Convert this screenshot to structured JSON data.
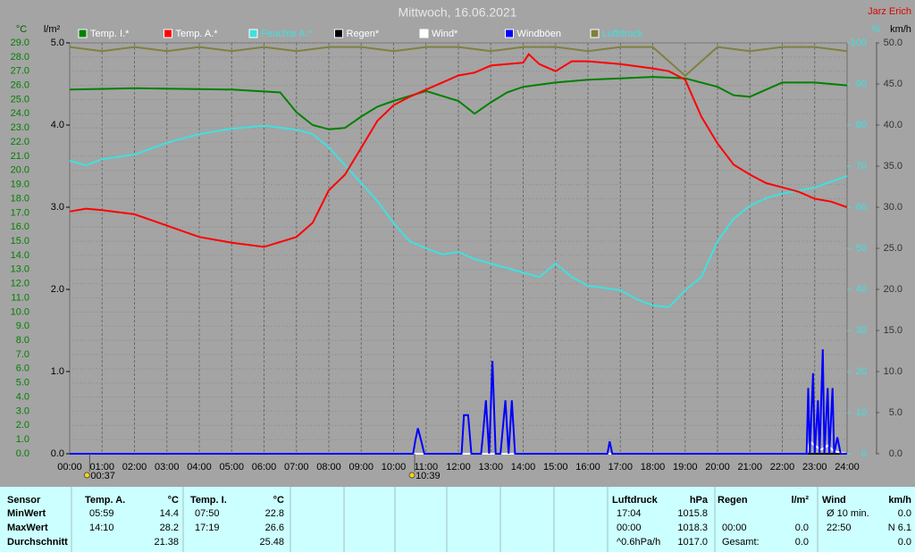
{
  "chart_data": {
    "type": "line",
    "title": "Mittwoch, 16.06.2021",
    "author": "Jarz Erich",
    "units": {
      "y": "°C",
      "y2": "l/m²",
      "y3": "%",
      "y4": "km/h"
    },
    "xlim": [
      0,
      24
    ],
    "xticks": [
      {
        "value": 0,
        "label": "00:00"
      },
      {
        "value": 1,
        "label": "01:00"
      },
      {
        "value": 2,
        "label": "02:00"
      },
      {
        "value": 3,
        "label": "03:00"
      },
      {
        "value": 4,
        "label": "04:00"
      },
      {
        "value": 5,
        "label": "05:00"
      },
      {
        "value": 6,
        "label": "06:00"
      },
      {
        "value": 7,
        "label": "07:00"
      },
      {
        "value": 8,
        "label": "08:00"
      },
      {
        "value": 9,
        "label": "09:00"
      },
      {
        "value": 10,
        "label": "10:00"
      },
      {
        "value": 11,
        "label": "11:00"
      },
      {
        "value": 12,
        "label": "12:00"
      },
      {
        "value": 13,
        "label": "13:00"
      },
      {
        "value": 14,
        "label": "14:00"
      },
      {
        "value": 15,
        "label": "15:00"
      },
      {
        "value": 16,
        "label": "16:00"
      },
      {
        "value": 17,
        "label": "17:00"
      },
      {
        "value": 18,
        "label": "18:00"
      },
      {
        "value": 19,
        "label": "19:00"
      },
      {
        "value": 20,
        "label": "20:00"
      },
      {
        "value": 21,
        "label": "21:00"
      },
      {
        "value": 22,
        "label": "22:00"
      },
      {
        "value": 23,
        "label": "23:00"
      },
      {
        "value": 24,
        "label": "24:00"
      }
    ],
    "ylim": [
      0,
      29
    ],
    "yticks": [
      {
        "value": 0,
        "label": "0.0"
      },
      {
        "value": 1,
        "label": "1.0"
      },
      {
        "value": 2,
        "label": "2.0"
      },
      {
        "value": 3,
        "label": "3.0"
      },
      {
        "value": 4,
        "label": "4.0"
      },
      {
        "value": 5,
        "label": "5.0"
      },
      {
        "value": 6,
        "label": "6.0"
      },
      {
        "value": 7,
        "label": "7.0"
      },
      {
        "value": 8,
        "label": "8.0"
      },
      {
        "value": 9,
        "label": "9.0"
      },
      {
        "value": 10,
        "label": "10.0"
      },
      {
        "value": 11,
        "label": "11.0"
      },
      {
        "value": 12,
        "label": "12.0"
      },
      {
        "value": 13,
        "label": "13.0"
      },
      {
        "value": 14,
        "label": "14.0"
      },
      {
        "value": 15,
        "label": "15.0"
      },
      {
        "value": 16,
        "label": "16.0"
      },
      {
        "value": 17,
        "label": "17.0"
      },
      {
        "value": 18,
        "label": "18.0"
      },
      {
        "value": 19,
        "label": "19.0"
      },
      {
        "value": 20,
        "label": "20.0"
      },
      {
        "value": 21,
        "label": "21.0"
      },
      {
        "value": 22,
        "label": "22.0"
      },
      {
        "value": 23,
        "label": "23.0"
      },
      {
        "value": 24,
        "label": "24.0"
      },
      {
        "value": 25,
        "label": "25.0"
      },
      {
        "value": 26,
        "label": "26.0"
      },
      {
        "value": 27,
        "label": "27.0"
      },
      {
        "value": 28,
        "label": "28.0"
      },
      {
        "value": 29,
        "label": "29.0"
      }
    ],
    "y2lim": [
      0,
      5
    ],
    "y2ticks": [
      {
        "value": 0,
        "label": "0.0"
      },
      {
        "value": 1,
        "label": "1.0"
      },
      {
        "value": 2,
        "label": "2.0"
      },
      {
        "value": 3,
        "label": "3.0"
      },
      {
        "value": 4,
        "label": "4.0"
      },
      {
        "value": 5,
        "label": "5.0"
      }
    ],
    "y3lim": [
      0,
      100
    ],
    "y3ticks": [
      0,
      10,
      20,
      30,
      40,
      50,
      60,
      70,
      80,
      90,
      100
    ],
    "y4lim": [
      0,
      50
    ],
    "y4ticks": [
      {
        "value": 0,
        "label": "0.0"
      },
      {
        "value": 5,
        "label": "5.0"
      },
      {
        "value": 10,
        "label": "10.0"
      },
      {
        "value": 15,
        "label": "15.0"
      },
      {
        "value": 20,
        "label": "20.0"
      },
      {
        "value": 25,
        "label": "25.0"
      },
      {
        "value": 30,
        "label": "30.0"
      },
      {
        "value": 35,
        "label": "35.0"
      },
      {
        "value": 40,
        "label": "40.0"
      },
      {
        "value": 45,
        "label": "45.0"
      },
      {
        "value": 50,
        "label": "50.0"
      }
    ],
    "grid": true,
    "series": [
      {
        "name": "Temp. I.*",
        "color": "#008000",
        "axis": "y",
        "x": [
          0,
          2,
          5,
          6.5,
          7,
          7.5,
          8,
          8.5,
          9,
          9.5,
          10,
          11,
          12,
          12.5,
          13,
          13.5,
          14,
          15,
          16,
          17,
          18,
          19,
          20,
          20.5,
          21,
          21.5,
          22,
          23,
          24
        ],
        "values": [
          25.7,
          25.8,
          25.7,
          25.5,
          24.1,
          23.2,
          22.9,
          23.0,
          23.8,
          24.5,
          24.9,
          25.6,
          24.9,
          24.0,
          24.8,
          25.5,
          25.9,
          26.2,
          26.4,
          26.5,
          26.6,
          26.5,
          25.9,
          25.3,
          25.2,
          25.7,
          26.2,
          26.2,
          26.0
        ]
      },
      {
        "name": "Temp. A.*",
        "color": "#ff0000",
        "axis": "y",
        "x": [
          0,
          0.5,
          1,
          2,
          3,
          4,
          5,
          6,
          7,
          7.5,
          8,
          8.5,
          9,
          9.5,
          10,
          10.5,
          11,
          11.5,
          12,
          12.5,
          13,
          13.5,
          14,
          14.17,
          14.5,
          15,
          15.5,
          16,
          17,
          18,
          18.5,
          19,
          19.5,
          20,
          20.5,
          21,
          21.5,
          22,
          22.5,
          23,
          23.5,
          24
        ],
        "values": [
          17.1,
          17.3,
          17.2,
          16.9,
          16.1,
          15.3,
          14.9,
          14.6,
          15.3,
          16.3,
          18.6,
          19.7,
          21.6,
          23.5,
          24.6,
          25.2,
          25.7,
          26.2,
          26.7,
          26.9,
          27.4,
          27.5,
          27.6,
          28.2,
          27.5,
          27.0,
          27.7,
          27.7,
          27.5,
          27.2,
          27.0,
          26.4,
          23.8,
          21.9,
          20.4,
          19.7,
          19.1,
          18.8,
          18.5,
          18.0,
          17.8,
          17.4
        ]
      },
      {
        "name": "Feuchte A.*",
        "color": "#40e0e0",
        "axis": "y3",
        "x": [
          0,
          0.5,
          1,
          2,
          3,
          4,
          5,
          6,
          7,
          7.5,
          8,
          8.5,
          9,
          9.5,
          10,
          10.5,
          11,
          11.5,
          12,
          12.5,
          13,
          13.5,
          14,
          14.5,
          15,
          15.5,
          16,
          17,
          17.5,
          18,
          18.5,
          19,
          19.5,
          20,
          20.5,
          21,
          21.5,
          22,
          23,
          24
        ],
        "values": [
          71.3,
          70.2,
          71.7,
          72.8,
          75.7,
          77.8,
          79.1,
          79.8,
          78.9,
          77.8,
          74.6,
          70.2,
          65.9,
          61.5,
          56.1,
          51.7,
          50.0,
          48.5,
          49.1,
          47.4,
          46.3,
          45.2,
          44.1,
          43.0,
          46.3,
          43.0,
          40.9,
          39.8,
          37.6,
          36.1,
          35.7,
          39.8,
          43.0,
          51.7,
          57.2,
          60.4,
          62.2,
          63.3,
          64.8,
          67.6
        ]
      },
      {
        "name": "Regen*",
        "color": "#000000",
        "axis": "y2",
        "x": [
          0,
          24
        ],
        "values": [
          0,
          0
        ]
      },
      {
        "name": "Wind*",
        "color": "#ffffff",
        "axis": "y4",
        "x": [
          0,
          22.75,
          22.85,
          23.0,
          23.2,
          23.4,
          23.6,
          24
        ],
        "values": [
          0,
          0,
          1.5,
          1.0,
          0.5,
          1.0,
          0.3,
          0
        ]
      },
      {
        "name": "Windböen",
        "color": "#0000ff",
        "axis": "y4",
        "x": [
          0,
          10.6,
          10.67,
          10.75,
          10.85,
          10.95,
          12.1,
          12.17,
          12.3,
          12.4,
          12.7,
          12.75,
          12.85,
          12.95,
          13.05,
          13.15,
          13.3,
          13.45,
          13.55,
          13.65,
          13.75,
          13.85,
          16.6,
          16.67,
          16.75,
          22.75,
          22.8,
          22.85,
          22.95,
          23.0,
          23.1,
          23.15,
          23.25,
          23.3,
          23.4,
          23.45,
          23.55,
          23.6,
          23.7,
          23.8,
          23.9,
          24
        ],
        "values": [
          0,
          0,
          1.6,
          3.1,
          1.6,
          0,
          0,
          4.7,
          4.7,
          0,
          0,
          2.0,
          6.5,
          0,
          11.3,
          0,
          0,
          6.5,
          0,
          6.5,
          0,
          0,
          0,
          1.5,
          0,
          0,
          8.0,
          0,
          9.8,
          0,
          6.5,
          0,
          12.7,
          0,
          8.0,
          0,
          8.0,
          0,
          2.0,
          0,
          0,
          0
        ]
      },
      {
        "name": "Luftdruck",
        "color": "#808040",
        "axis": "y3",
        "x": [
          0,
          1,
          2,
          3,
          4,
          5,
          6,
          7,
          8,
          9,
          10,
          11,
          12,
          13,
          14,
          15,
          16,
          17,
          18,
          19,
          20,
          21,
          22,
          23,
          24
        ],
        "values": [
          99,
          98,
          99,
          98,
          99,
          98,
          99,
          98,
          99,
          99,
          98,
          99,
          99,
          98,
          99,
          99,
          98,
          99,
          99,
          92,
          99,
          98,
          99,
          99,
          98
        ]
      }
    ],
    "annotations": [
      {
        "x": 0.617,
        "label": "00:37"
      },
      {
        "x": 10.65,
        "label": "10:39"
      }
    ]
  },
  "stats": {
    "row_labels": [
      "Sensor",
      "MinWert",
      "MaxWert",
      "Durchschnitt"
    ],
    "columns": [
      {
        "name": "Temp. A.",
        "unit": "°C",
        "rows": [
          [
            "05:59",
            "14.4"
          ],
          [
            "14:10",
            "28.2"
          ],
          [
            null,
            "21.38"
          ]
        ]
      },
      {
        "name": "Temp. I.",
        "unit": "°C",
        "rows": [
          [
            "07:50",
            "22.8"
          ],
          [
            "17:19",
            "26.6"
          ],
          [
            null,
            "25.48"
          ]
        ]
      },
      {
        "name": "Luftdruck",
        "unit": "hPa",
        "rows": [
          [
            "17:04",
            "1015.8"
          ],
          [
            "00:00",
            "1018.3"
          ],
          [
            "^0.6hPa/h",
            "1017.0"
          ]
        ]
      },
      {
        "name": "Regen",
        "unit": "l/m²",
        "rows": [
          [
            null,
            null
          ],
          [
            "00:00",
            "0.0"
          ],
          [
            "Gesamt:",
            "0.0"
          ]
        ]
      },
      {
        "name": "Wind",
        "unit": "km/h",
        "rows": [
          [
            "Ø 10 min.",
            "0.0"
          ],
          [
            "22:50",
            "N 6.1"
          ],
          [
            null,
            "0.0"
          ]
        ]
      }
    ]
  }
}
